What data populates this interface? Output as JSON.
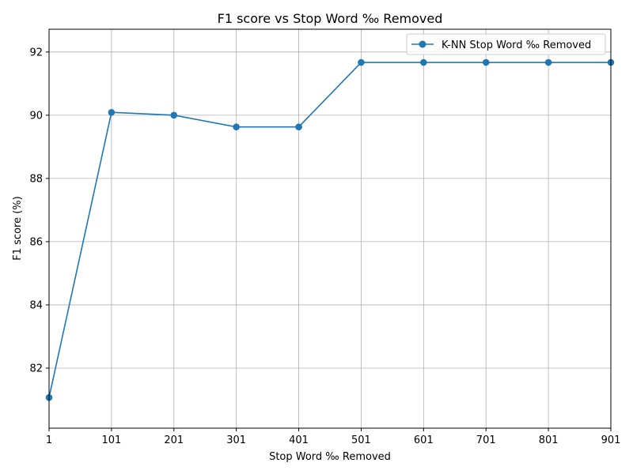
{
  "chart_data": {
    "type": "line",
    "title": "F1 score vs Stop Word ‰ Removed",
    "xlabel": "Stop Word ‰ Removed",
    "ylabel": "F1 score (%)",
    "x": [
      1,
      101,
      201,
      301,
      401,
      501,
      601,
      701,
      801,
      901
    ],
    "series": [
      {
        "name": "K-NN Stop Word ‰ Removed",
        "values": [
          81.07,
          90.09,
          90.0,
          89.63,
          89.63,
          91.67,
          91.67,
          91.67,
          91.67,
          91.67
        ]
      }
    ],
    "xlim": [
      1,
      901
    ],
    "ylim": [
      80.1,
      92.72
    ],
    "xticks": [
      1,
      101,
      201,
      301,
      401,
      501,
      601,
      701,
      801,
      901
    ],
    "yticks": [
      82,
      84,
      86,
      88,
      90,
      92
    ],
    "grid": true,
    "legend_position": "top-right",
    "colors": {
      "series": "#1f77b4",
      "grid": "#b0b0b0",
      "axis": "#000000"
    }
  }
}
